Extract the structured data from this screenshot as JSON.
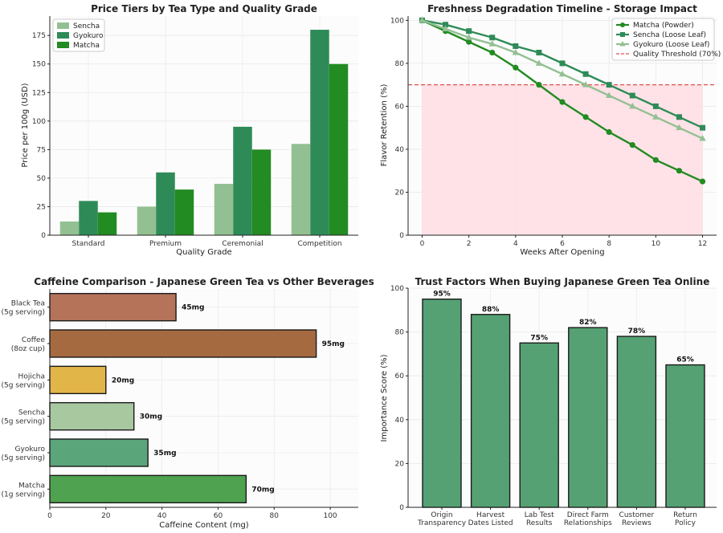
{
  "chart_data": [
    {
      "type": "bar",
      "title": "Price Tiers by Tea Type and Quality Grade",
      "xlabel": "Quality Grade",
      "ylabel": "Price per 100g (USD)",
      "categories": [
        "Standard",
        "Premium",
        "Ceremonial",
        "Competition"
      ],
      "series": [
        {
          "name": "Sencha",
          "values": [
            12,
            25,
            45,
            80
          ],
          "color": "#93c093"
        },
        {
          "name": "Gyokuro",
          "values": [
            30,
            55,
            95,
            180
          ],
          "color": "#2e8b57"
        },
        {
          "name": "Matcha",
          "values": [
            20,
            40,
            75,
            150
          ],
          "color": "#228b22"
        }
      ],
      "ylim": [
        0,
        192
      ],
      "yticks": [
        0,
        25,
        50,
        75,
        100,
        125,
        150,
        175
      ],
      "grid": true,
      "legend": "top-left"
    },
    {
      "type": "line",
      "title": "Freshness Degradation Timeline - Storage Impact",
      "xlabel": "Weeks After Opening",
      "ylabel": "Flavor Retention (%)",
      "x": [
        0,
        1,
        2,
        3,
        4,
        5,
        6,
        7,
        8,
        9,
        10,
        11,
        12
      ],
      "series": [
        {
          "name": "Matcha (Powder)",
          "marker": "circle",
          "color": "#228b22",
          "values": [
            100,
            95,
            90,
            85,
            78,
            70,
            62,
            55,
            48,
            42,
            35,
            30,
            25
          ]
        },
        {
          "name": "Sencha (Loose Leaf)",
          "marker": "square",
          "color": "#2e8b57",
          "values": [
            100,
            98,
            95,
            92,
            88,
            85,
            80,
            75,
            70,
            65,
            60,
            55,
            50
          ]
        },
        {
          "name": "Gyokuro (Loose Leaf)",
          "marker": "triangle",
          "color": "#93c093",
          "values": [
            100,
            96,
            92,
            89,
            85,
            80,
            75,
            70,
            65,
            60,
            55,
            50,
            45
          ]
        }
      ],
      "threshold": {
        "name": "Quality Threshold (70%)",
        "value": 70,
        "color": "#e05050"
      },
      "shaded_region": {
        "x": [
          0,
          12
        ],
        "y": [
          0,
          70
        ],
        "color": "#ffdde3"
      },
      "xlim": [
        -0.6,
        12.6
      ],
      "ylim": [
        0,
        102
      ],
      "xticks": [
        0,
        2,
        4,
        6,
        8,
        10,
        12
      ],
      "yticks": [
        0,
        20,
        40,
        60,
        80,
        100
      ],
      "grid": true,
      "legend": "top-right"
    },
    {
      "type": "bar",
      "orientation": "horizontal",
      "title": "Caffeine Comparison - Japanese Green Tea vs Other Beverages",
      "xlabel": "Caffeine Content (mg)",
      "categories": [
        "Black Tea\n(5g serving)",
        "Coffee\n(8oz cup)",
        "Hojicha\n(5g serving)",
        "Sencha\n(5g serving)",
        "Gyokuro\n(5g serving)",
        "Matcha\n(1g serving)"
      ],
      "values": [
        45,
        95,
        20,
        30,
        35,
        70
      ],
      "value_labels": [
        "45mg",
        "95mg",
        "20mg",
        "30mg",
        "35mg",
        "70mg"
      ],
      "colors": [
        "#b5735a",
        "#a66a40",
        "#e1b548",
        "#a8c8a0",
        "#5ba57a",
        "#4fa24f"
      ],
      "xlim": [
        0,
        110
      ],
      "xticks": [
        0,
        20,
        40,
        60,
        80,
        100
      ],
      "grid": true
    },
    {
      "type": "bar",
      "title": "Trust Factors When Buying Japanese Green Tea Online",
      "ylabel": "Importance Score (%)",
      "categories": [
        "Origin\nTransparency",
        "Harvest\nDates Listed",
        "Lab Test\nResults",
        "Direct Farm\nRelationships",
        "Customer\nReviews",
        "Return\nPolicy"
      ],
      "values": [
        95,
        88,
        75,
        82,
        78,
        65
      ],
      "value_labels": [
        "95%",
        "88%",
        "75%",
        "82%",
        "78%",
        "65%"
      ],
      "color": "#55a173",
      "ylim": [
        0,
        100
      ],
      "yticks": [
        0,
        20,
        40,
        60,
        80,
        100
      ],
      "grid": true
    }
  ]
}
